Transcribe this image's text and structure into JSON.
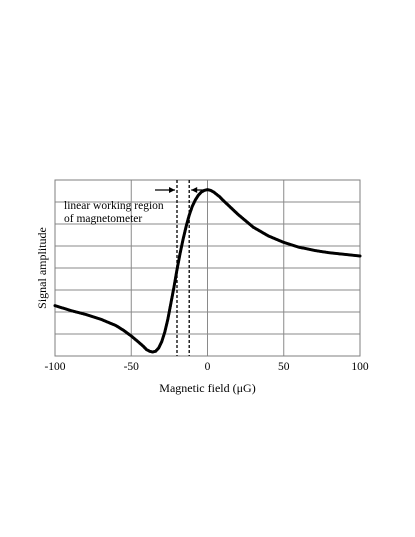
{
  "chart_data": {
    "type": "scatter",
    "xlabel": "Magnetic field (μG)",
    "ylabel": "Signal amplitude",
    "xlim": [
      -100,
      100
    ],
    "ylim": [
      -1.1,
      1.1
    ],
    "x_ticks": [
      -100,
      -50,
      0,
      50,
      100
    ],
    "x_tick_labels": [
      "-100",
      "-50",
      "0",
      "50",
      "100"
    ],
    "grid": true,
    "y_tick_labels_shown": false,
    "annotation": {
      "lines": [
        "linear working region",
        "of magnetometer"
      ],
      "region_x": [
        -20,
        -12
      ]
    },
    "series": [
      {
        "x": [
          -100,
          -90,
          -80,
          -70,
          -60,
          -55,
          -50,
          -45,
          -42,
          -40,
          -38,
          -36,
          -34,
          -32,
          -30,
          -28,
          -26,
          -24,
          -22,
          -20,
          -18,
          -16,
          -14,
          -12,
          -10,
          -8,
          -6,
          -4,
          -2,
          0,
          2,
          4,
          6,
          8,
          10,
          15,
          20,
          25,
          30,
          40,
          50,
          60,
          70,
          80,
          90,
          100
        ],
        "y": [
          -0.47,
          -0.53,
          -0.58,
          -0.64,
          -0.72,
          -0.78,
          -0.85,
          -0.93,
          -0.98,
          -1.02,
          -1.04,
          -1.05,
          -1.04,
          -1.0,
          -0.92,
          -0.8,
          -0.64,
          -0.44,
          -0.24,
          -0.02,
          0.18,
          0.36,
          0.52,
          0.66,
          0.77,
          0.85,
          0.91,
          0.95,
          0.97,
          0.98,
          0.97,
          0.95,
          0.92,
          0.89,
          0.85,
          0.76,
          0.67,
          0.59,
          0.51,
          0.4,
          0.32,
          0.26,
          0.22,
          0.19,
          0.17,
          0.15
        ]
      }
    ]
  }
}
